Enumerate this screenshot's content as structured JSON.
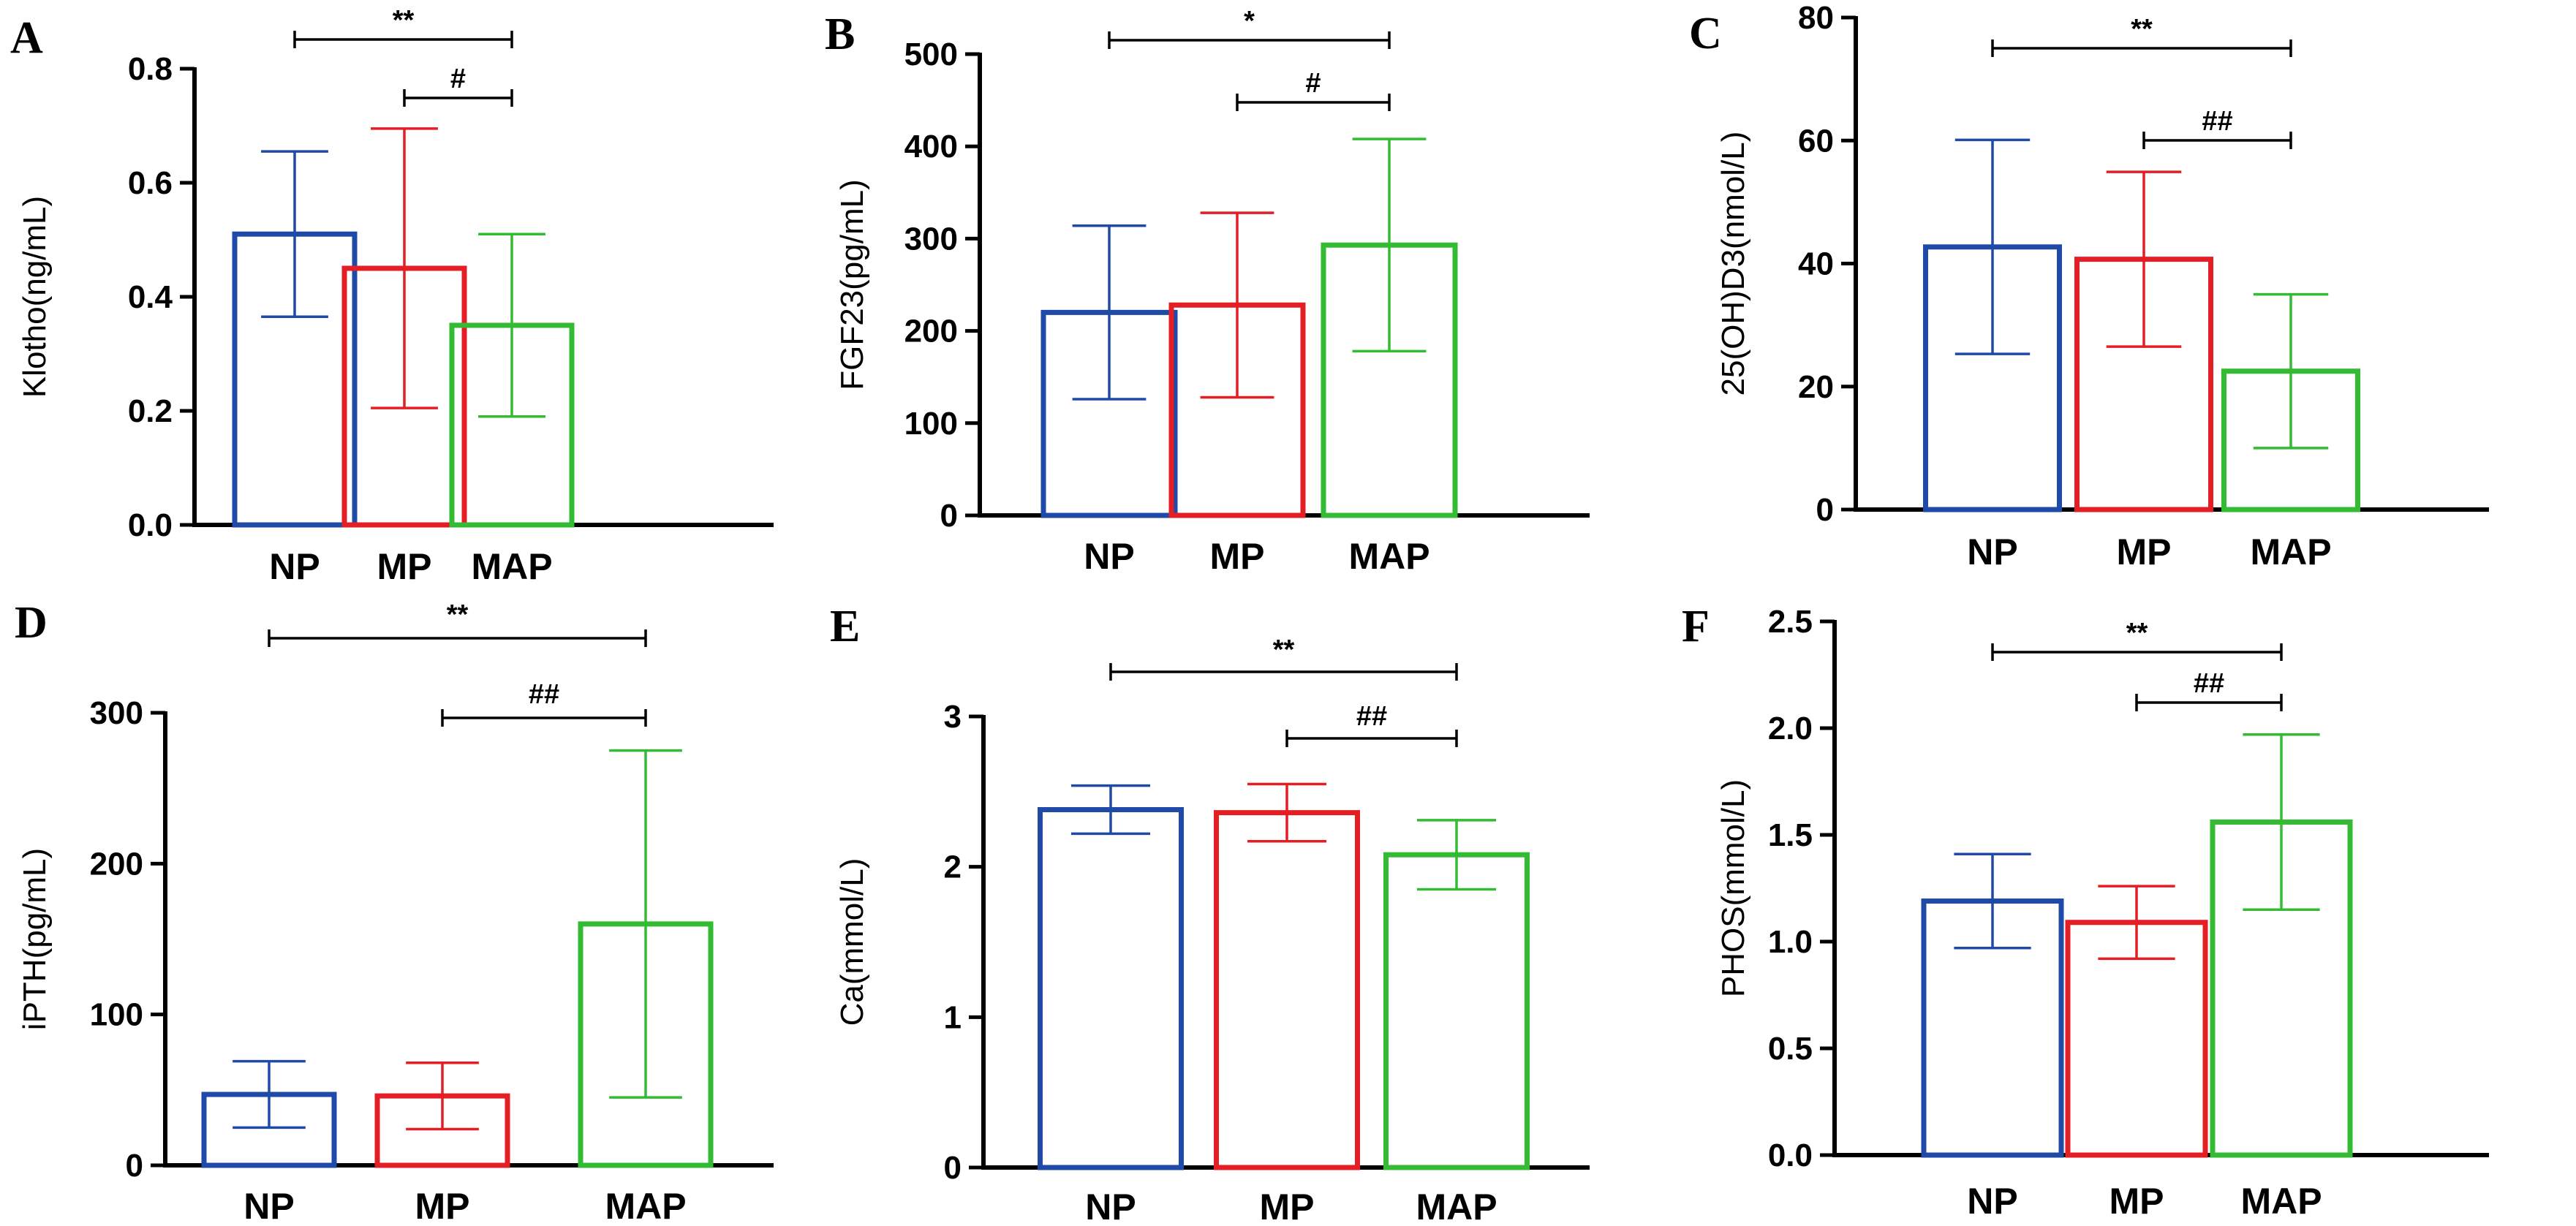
{
  "colors": {
    "NP": "#1f4aa8",
    "MP": "#e41e25",
    "MAP": "#33bb33",
    "axis": "#000000"
  },
  "chart_data": [
    {
      "id": "A",
      "letter": "A",
      "type": "bar",
      "ylabel": "Klotho(ng/mL)",
      "categories": [
        "NP",
        "MP",
        "MAP"
      ],
      "values": [
        0.51,
        0.45,
        0.35
      ],
      "errors": [
        0.145,
        0.245,
        0.16
      ],
      "ylim": [
        0,
        0.8
      ],
      "ticks": [
        0,
        0.2,
        0.4,
        0.6,
        0.8
      ],
      "tick_labels": [
        "0.0",
        "0.2",
        "0.4",
        "0.6",
        "0.8"
      ],
      "significance": [
        {
          "from": 0,
          "to": 2,
          "label": "**"
        },
        {
          "from": 1,
          "to": 2,
          "label": "#"
        }
      ]
    },
    {
      "id": "B",
      "letter": "B",
      "type": "bar",
      "ylabel": "FGF23(pg/mL)",
      "categories": [
        "NP",
        "MP",
        "MAP"
      ],
      "values": [
        220,
        228,
        293
      ],
      "errors": [
        94,
        100,
        115
      ],
      "ylim": [
        0,
        500
      ],
      "ticks": [
        0,
        100,
        200,
        300,
        400,
        500
      ],
      "tick_labels": [
        "0",
        "100",
        "200",
        "300",
        "400",
        "500"
      ],
      "significance": [
        {
          "from": 0,
          "to": 2,
          "label": "*"
        },
        {
          "from": 1,
          "to": 2,
          "label": "#"
        }
      ]
    },
    {
      "id": "C",
      "letter": "C",
      "type": "bar",
      "ylabel": "25(OH)D3(nmol/L)",
      "categories": [
        "NP",
        "MP",
        "MAP"
      ],
      "values": [
        42.7,
        40.7,
        22.5
      ],
      "errors": [
        17.4,
        14.2,
        12.5
      ],
      "ylim": [
        0,
        80
      ],
      "ticks": [
        0,
        20,
        40,
        60,
        80
      ],
      "tick_labels": [
        "0",
        "20",
        "40",
        "60",
        "80"
      ],
      "significance": [
        {
          "from": 0,
          "to": 2,
          "label": "**"
        },
        {
          "from": 1,
          "to": 2,
          "label": "##"
        }
      ]
    },
    {
      "id": "D",
      "letter": "D",
      "type": "bar",
      "ylabel": "iPTH(pg/mL)",
      "categories": [
        "NP",
        "MP",
        "MAP"
      ],
      "values": [
        47,
        46,
        160
      ],
      "errors": [
        22,
        22,
        115
      ],
      "ylim": [
        0,
        300
      ],
      "ticks": [
        0,
        100,
        200,
        300
      ],
      "tick_labels": [
        "0",
        "100",
        "200",
        "300"
      ],
      "significance": [
        {
          "from": 0,
          "to": 2,
          "label": "**"
        },
        {
          "from": 1,
          "to": 2,
          "label": "##"
        }
      ]
    },
    {
      "id": "E",
      "letter": "E",
      "type": "bar",
      "ylabel": "Ca(mmol/L)",
      "categories": [
        "NP",
        "MP",
        "MAP"
      ],
      "values": [
        2.38,
        2.36,
        2.08
      ],
      "errors": [
        0.16,
        0.19,
        0.23
      ],
      "ylim": [
        0,
        3
      ],
      "ticks": [
        0,
        1,
        2,
        3
      ],
      "tick_labels": [
        "0",
        "1",
        "2",
        "3"
      ],
      "significance": [
        {
          "from": 0,
          "to": 2,
          "label": "**"
        },
        {
          "from": 1,
          "to": 2,
          "label": "##"
        }
      ]
    },
    {
      "id": "F",
      "letter": "F",
      "type": "bar",
      "ylabel": "PHOS(mmol/L)",
      "categories": [
        "NP",
        "MP",
        "MAP"
      ],
      "values": [
        1.19,
        1.09,
        1.56
      ],
      "errors": [
        0.22,
        0.17,
        0.41
      ],
      "ylim": [
        0,
        2.5
      ],
      "ticks": [
        0,
        0.5,
        1.0,
        1.5,
        2.0,
        2.5
      ],
      "tick_labels": [
        "0.0",
        "0.5",
        "1.0",
        "1.5",
        "2.0",
        "2.5"
      ],
      "significance": [
        {
          "from": 0,
          "to": 2,
          "label": "**"
        },
        {
          "from": 1,
          "to": 2,
          "label": "##"
        }
      ]
    }
  ]
}
